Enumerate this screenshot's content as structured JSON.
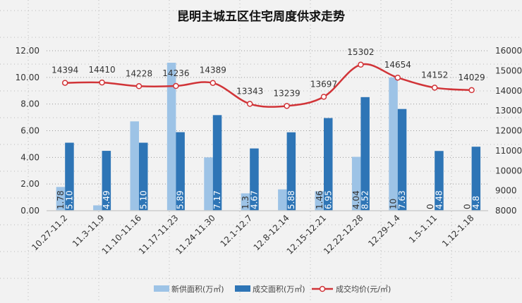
{
  "chart_data": {
    "type": "bar+line",
    "title": "昆明主城五区住宅周度供求走势",
    "categories": [
      "10.27-11.2",
      "11.3-11.9",
      "11.10-11.16",
      "11.17-11.23",
      "11.24-11.30",
      "12.1-12.7",
      "12.8-12.14",
      "12.15-12.21",
      "12.22-12.28",
      "12.29-1.4",
      "1.5-1.11",
      "1.12-1.18"
    ],
    "left_axis": {
      "ylim": [
        0,
        12
      ],
      "ticks": [
        "0.00",
        "2.00",
        "4.00",
        "6.00",
        "8.00",
        "10.00",
        "12.00"
      ]
    },
    "right_axis": {
      "ylim": [
        8000,
        16000
      ],
      "ticks": [
        "8000",
        "9000",
        "10000",
        "11000",
        "12000",
        "13000",
        "14000",
        "15000",
        "16000"
      ]
    },
    "grid": true,
    "legend_position": "bottom",
    "series": [
      {
        "name": "新供面积(万㎡)",
        "type": "bar",
        "axis": "left",
        "color": "#9dc3e6",
        "values": [
          1.78,
          0.4,
          6.7,
          11.1,
          4.0,
          1.3,
          1.6,
          1.46,
          4.04,
          10,
          0,
          0
        ],
        "labels": [
          "1.78",
          null,
          null,
          null,
          null,
          "1.3",
          null,
          "1.46",
          "4.04",
          "10",
          "0",
          "0"
        ]
      },
      {
        "name": "成交面积(万㎡)",
        "type": "bar",
        "axis": "left",
        "color": "#2e75b6",
        "values": [
          5.1,
          4.49,
          5.1,
          5.89,
          7.17,
          4.67,
          5.88,
          6.95,
          8.52,
          7.63,
          4.48,
          4.8
        ],
        "labels": [
          "5.10",
          "4.49",
          "5.10",
          "5.89",
          "7.17",
          "4.67",
          "5.88",
          "6.95",
          "8.52",
          "7.63",
          "4.48",
          "4.8"
        ]
      },
      {
        "name": "成交均价(元/㎡)",
        "type": "line",
        "axis": "right",
        "color": "#d13438",
        "values": [
          14394,
          14410,
          14228,
          14236,
          14389,
          13343,
          13239,
          13697,
          15302,
          14654,
          14152,
          14029
        ],
        "labels": [
          "14394",
          "14410",
          "14228",
          "14236",
          "14389",
          "13343",
          "13239",
          "13697",
          "15302",
          "14654",
          "14152",
          "14029"
        ]
      }
    ]
  }
}
